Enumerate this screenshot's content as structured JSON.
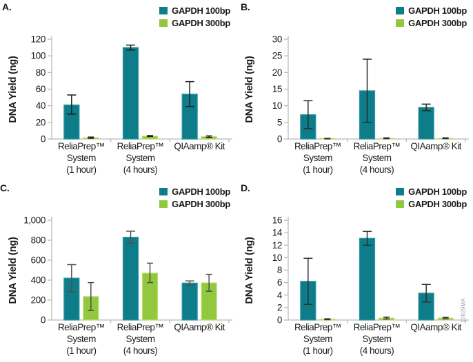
{
  "figure": {
    "watermark": "12629MA",
    "ylabel": "DNA Yield (ng)",
    "colors": {
      "teal": "#0E7D8A",
      "teal_edge": "#2D94A1",
      "green": "#92C83E",
      "green_edge": "#BADF72",
      "axis": "#B9B9B9",
      "text": "#1A1A1A"
    },
    "legend": [
      {
        "label": "GAPDH 100bp",
        "series": "teal"
      },
      {
        "label": "GAPDH 300bp",
        "series": "green"
      }
    ],
    "category_lines": [
      [
        "ReliaPrep™",
        "System",
        "(1 hour)"
      ],
      [
        "ReliaPrep™",
        "System",
        "(4 hours)"
      ],
      [
        "QIAamp® Kit"
      ]
    ]
  },
  "chart_data": [
    {
      "panel": "A.",
      "type": "bar",
      "ylabel": "DNA Yield (ng)",
      "xlabel": "",
      "ylim": [
        0,
        120
      ],
      "ymax": 120,
      "yticks": [
        "0",
        "20",
        "40",
        "60",
        "80",
        "100",
        "120"
      ],
      "categories": [
        "ReliaPrep™ System (1 hour)",
        "ReliaPrep™ System (4 hours)",
        "QIAamp® Kit"
      ],
      "legend_position": "top-right",
      "grid": false,
      "err_color": "#1a1a1a",
      "series": [
        {
          "name": "GAPDH 100bp",
          "values": [
            41,
            110,
            54
          ],
          "err_lo": [
            30,
            107,
            39
          ],
          "err_hi": [
            53,
            113,
            69
          ]
        },
        {
          "name": "GAPDH 300bp",
          "values": [
            1.5,
            3.5,
            2.8
          ],
          "err_lo": [
            0.8,
            3.0,
            1.9
          ],
          "err_hi": [
            2.3,
            4.1,
            3.7
          ]
        }
      ]
    },
    {
      "panel": "B.",
      "type": "bar",
      "ylabel": "DNA Yield (ng)",
      "xlabel": "",
      "ylim": [
        0,
        30
      ],
      "ymax": 30,
      "yticks": [
        "0",
        "5",
        "10",
        "15",
        "20",
        "25",
        "30"
      ],
      "categories": [
        "ReliaPrep™ System (1 hour)",
        "ReliaPrep™ System (4 hours)",
        "QIAamp® Kit"
      ],
      "legend_position": "top-right",
      "grid": false,
      "err_color": "#2a2a2a",
      "series": [
        {
          "name": "GAPDH 100bp",
          "values": [
            7.3,
            14.5,
            9.5
          ],
          "err_lo": [
            3.1,
            5.0,
            8.5
          ],
          "err_hi": [
            11.5,
            24.0,
            10.5
          ]
        },
        {
          "name": "GAPDH 300bp",
          "values": [
            0.1,
            0.2,
            0.2
          ],
          "err_lo": [
            0.05,
            0.1,
            0.1
          ],
          "err_hi": [
            0.2,
            0.35,
            0.35
          ]
        }
      ]
    },
    {
      "panel": "C.",
      "type": "bar",
      "ylabel": "DNA Yield (ng)",
      "xlabel": "",
      "ylim": [
        0,
        1000
      ],
      "ymax": 1000,
      "yticks": [
        "0",
        "200",
        "400",
        "600",
        "800",
        "1,000"
      ],
      "categories": [
        "ReliaPrep™ System (1 hour)",
        "ReliaPrep™ System (4 hours)",
        "QIAamp® Kit"
      ],
      "legend_position": "top-right",
      "grid": false,
      "err_color": "#4e4e4e",
      "series": [
        {
          "name": "GAPDH 100bp",
          "values": [
            420,
            830,
            370
          ],
          "err_lo": [
            285,
            770,
            348
          ],
          "err_hi": [
            555,
            890,
            392
          ]
        },
        {
          "name": "GAPDH 300bp",
          "values": [
            235,
            470,
            372
          ],
          "err_lo": [
            95,
            375,
            288
          ],
          "err_hi": [
            375,
            570,
            458
          ]
        }
      ]
    },
    {
      "panel": "D.",
      "type": "bar",
      "ylabel": "DNA Yield (ng)",
      "xlabel": "",
      "ylim": [
        0,
        16
      ],
      "ymax": 16,
      "yticks": [
        "0",
        "2",
        "4",
        "6",
        "8",
        "10",
        "12",
        "14",
        "16"
      ],
      "categories": [
        "ReliaPrep™ System (1 hour)",
        "ReliaPrep™ System (4 hours)",
        "QIAamp® Kit"
      ],
      "legend_position": "top-right",
      "grid": false,
      "err_color": "#2f2f2f",
      "series": [
        {
          "name": "GAPDH 100bp",
          "values": [
            6.2,
            13.1,
            4.3
          ],
          "err_lo": [
            2.5,
            12.0,
            2.9
          ],
          "err_hi": [
            9.9,
            14.2,
            5.7
          ]
        },
        {
          "name": "GAPDH 300bp",
          "values": [
            0.12,
            0.3,
            0.3
          ],
          "err_lo": [
            0.05,
            0.15,
            0.2
          ],
          "err_hi": [
            0.2,
            0.45,
            0.42
          ]
        }
      ]
    }
  ]
}
